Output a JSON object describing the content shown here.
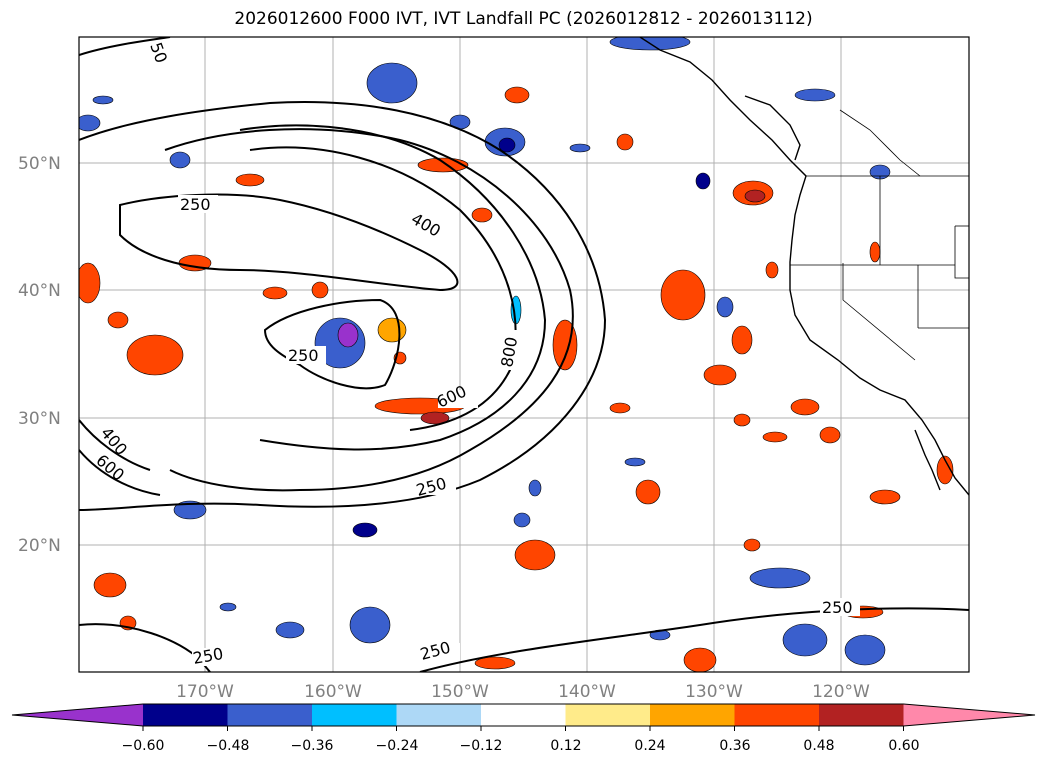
{
  "title": "2026012600 F000 IVT, IVT Landfall PC (2026012812 - 2026013112)",
  "map": {
    "lat_labels": [
      "50°N",
      "40°N",
      "30°N",
      "20°N"
    ],
    "lon_labels": [
      "170°W",
      "160°W",
      "150°W",
      "140°W",
      "130°W",
      "120°W"
    ],
    "contour_labels": [
      "250",
      "250",
      "250",
      "250",
      "250",
      "250",
      "400",
      "400",
      "600",
      "600",
      "800",
      "50"
    ],
    "colors": {
      "neg_strong": "#00008b",
      "neg_mid": "#3a5fcd",
      "neg_light": "#00bfff",
      "pos_light": "#ffd700",
      "pos_mid": "#ff4500",
      "pos_strong": "#b22222"
    }
  },
  "colorbar": {
    "ticks": [
      "−0.60",
      "−0.48",
      "−0.36",
      "−0.24",
      "−0.12",
      "0.12",
      "0.24",
      "0.36",
      "0.48",
      "0.60"
    ],
    "colors": [
      "#9932cc",
      "#00008b",
      "#3a5fcd",
      "#00bfff",
      "#add8f6",
      "#ffffff",
      "#ffeb8a",
      "#ffa500",
      "#ff4500",
      "#b22222",
      "#ff88aa"
    ]
  }
}
